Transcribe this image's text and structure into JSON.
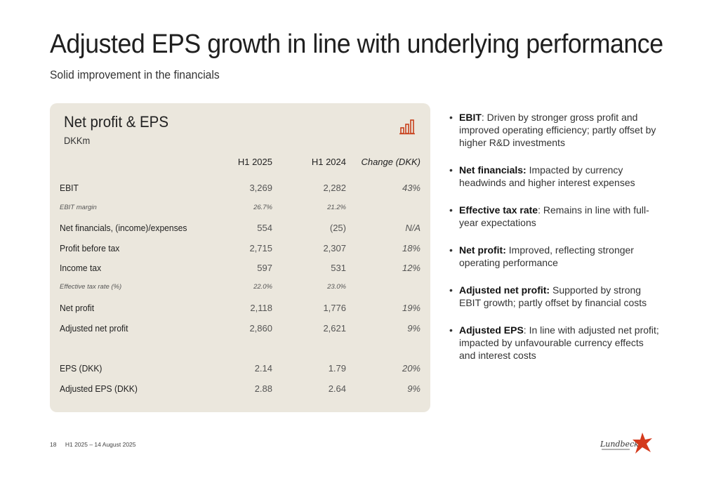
{
  "title": "Adjusted EPS growth in line with underlying performance",
  "subtitle": "Solid improvement in the financials",
  "card": {
    "title": "Net profit & EPS",
    "unit": "DKKm",
    "icon": "bar-chart-icon",
    "columns": [
      "H1 2025",
      "H1 2024",
      "Change (DKK)"
    ],
    "rows": [
      {
        "label": "EBIT",
        "v1": "3,269",
        "v2": "2,282",
        "chg": "43%"
      },
      {
        "label": "EBIT margin",
        "v1": "26.7%",
        "v2": "21.2%",
        "chg": ""
      },
      {
        "label": "Net financials, (income)/expenses",
        "v1": "554",
        "v2": "(25)",
        "chg": "N/A"
      },
      {
        "label": "Profit before tax",
        "v1": "2,715",
        "v2": "2,307",
        "chg": "18%"
      },
      {
        "label": "Income tax",
        "v1": "597",
        "v2": "531",
        "chg": "12%"
      },
      {
        "label": "Effective tax rate (%)",
        "v1": "22.0%",
        "v2": "23.0%",
        "chg": ""
      },
      {
        "label": "Net profit",
        "v1": "2,118",
        "v2": "1,776",
        "chg": "19%"
      },
      {
        "label": "Adjusted net profit",
        "v1": "2,860",
        "v2": "2,621",
        "chg": "9%"
      },
      {
        "label": "EPS (DKK)",
        "v1": "2.14",
        "v2": "1.79",
        "chg": "20%"
      },
      {
        "label": "Adjusted EPS (DKK)",
        "v1": "2.88",
        "v2": "2.64",
        "chg": "9%"
      }
    ]
  },
  "bullets": [
    {
      "term": "EBIT",
      "sep": ": ",
      "text": "Driven by stronger gross profit and improved operating efficiency; partly offset by higher R&D investments"
    },
    {
      "term": "Net financials:",
      "sep": " ",
      "text": "Impacted by currency headwinds and higher interest expenses"
    },
    {
      "term": "Effective tax rate",
      "sep": ": ",
      "text": "Remains in line with full-year expectations"
    },
    {
      "term": "Net profit:",
      "sep": " ",
      "text": "Improved, reflecting stronger operating performance"
    },
    {
      "term": "Adjusted net profit:",
      "sep": " ",
      "text": "Supported by strong EBIT growth; partly offset by financial costs"
    },
    {
      "term": "Adjusted EPS",
      "sep": ": ",
      "text": "In line with adjusted net profit; impacted by unfavourable currency effects and interest costs"
    }
  ],
  "footer": {
    "page": "18",
    "label": "H1 2025 – 14 August 2025"
  },
  "logo": {
    "text": "Lundbeck"
  },
  "colors": {
    "accent": "#c8401c",
    "card_bg": "#ebe7dd"
  }
}
